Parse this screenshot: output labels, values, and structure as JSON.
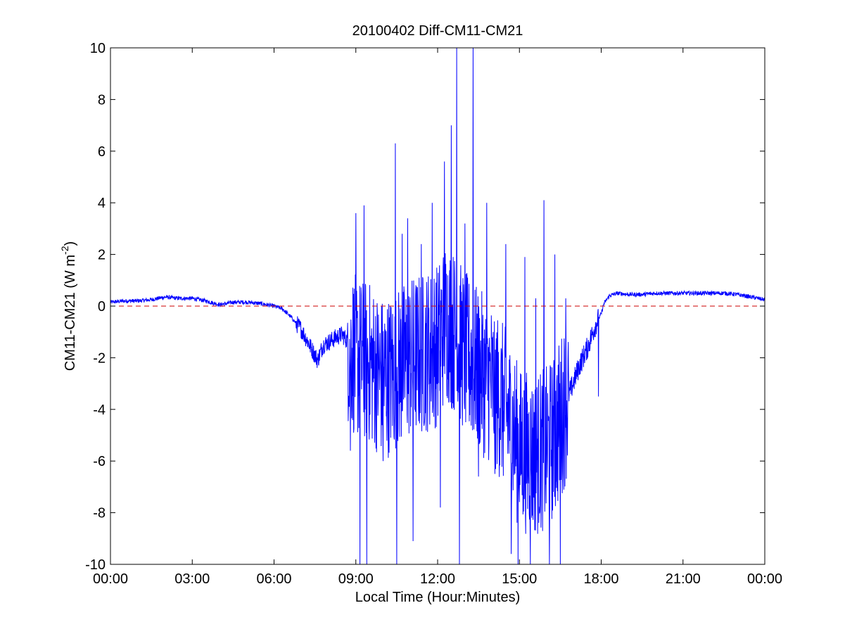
{
  "chart_data": {
    "type": "line",
    "title": "20100402 Diff-CM11-CM21",
    "xlabel": "Local Time (Hour:Minutes)",
    "ylabel": {
      "text": "CM11-CM21 (W m",
      "sup": "-2",
      "close": ")"
    },
    "xlim": [
      0,
      24
    ],
    "ylim": [
      -10,
      10
    ],
    "x_tick_values": [
      0,
      3,
      6,
      9,
      12,
      15,
      18,
      21,
      24
    ],
    "x_tick_labels": [
      "00:00",
      "03:00",
      "06:00",
      "09:00",
      "12:00",
      "15:00",
      "18:00",
      "21:00",
      "00:00"
    ],
    "y_ticks": [
      -10,
      -8,
      -6,
      -4,
      -2,
      0,
      2,
      4,
      6,
      8,
      10
    ],
    "y_tick_labels": [
      "-10",
      "-8",
      "-6",
      "-4",
      "-2",
      "0",
      "2",
      "4",
      "6",
      "8",
      "10"
    ],
    "grid": false,
    "series": [
      {
        "color": "#0000ff",
        "style": "solid",
        "x_unit": "hours",
        "points": [
          [
            0.0,
            0.15
          ],
          [
            0.5,
            0.2
          ],
          [
            1.0,
            0.2
          ],
          [
            1.5,
            0.25
          ],
          [
            2.0,
            0.35
          ],
          [
            2.5,
            0.3
          ],
          [
            3.0,
            0.3
          ],
          [
            3.5,
            0.2
          ],
          [
            4.0,
            0.05
          ],
          [
            4.5,
            0.15
          ],
          [
            5.0,
            0.15
          ],
          [
            5.5,
            0.1
          ],
          [
            6.0,
            0.0
          ],
          [
            6.3,
            -0.1
          ],
          [
            6.6,
            -0.4
          ],
          [
            7.0,
            -0.9
          ],
          [
            7.4,
            -1.7
          ],
          [
            7.6,
            -2.1
          ],
          [
            7.8,
            -1.5
          ],
          [
            8.0,
            -1.4
          ],
          [
            8.3,
            -1.2
          ],
          [
            8.5,
            -1.1
          ],
          [
            8.8,
            -1.5
          ],
          [
            9.0,
            -2.0
          ],
          [
            9.5,
            -2.2
          ],
          [
            10.0,
            -2.8
          ],
          [
            10.5,
            -2.5
          ],
          [
            11.0,
            -2.0
          ],
          [
            11.5,
            -1.8
          ],
          [
            12.0,
            -1.5
          ],
          [
            12.3,
            -0.5
          ],
          [
            12.6,
            -1.0
          ],
          [
            13.0,
            -1.8
          ],
          [
            13.5,
            -2.5
          ],
          [
            14.0,
            -3.0
          ],
          [
            14.5,
            -4.0
          ],
          [
            15.0,
            -5.5
          ],
          [
            15.5,
            -5.8
          ],
          [
            16.0,
            -5.5
          ],
          [
            16.3,
            -5.0
          ],
          [
            16.6,
            -4.0
          ],
          [
            16.9,
            -3.2
          ],
          [
            17.2,
            -2.3
          ],
          [
            17.5,
            -1.6
          ],
          [
            17.8,
            -0.7
          ],
          [
            18.0,
            -0.3
          ],
          [
            18.1,
            0.1
          ],
          [
            18.3,
            0.4
          ],
          [
            18.6,
            0.5
          ],
          [
            19.0,
            0.45
          ],
          [
            19.5,
            0.45
          ],
          [
            20.0,
            0.5
          ],
          [
            20.5,
            0.5
          ],
          [
            21.0,
            0.5
          ],
          [
            21.5,
            0.5
          ],
          [
            22.0,
            0.5
          ],
          [
            22.5,
            0.5
          ],
          [
            23.0,
            0.45
          ],
          [
            23.5,
            0.35
          ],
          [
            24.0,
            0.25
          ]
        ],
        "spikes": [
          [
            8.8,
            -5.6
          ],
          [
            9.0,
            3.6
          ],
          [
            9.15,
            -10.0
          ],
          [
            9.3,
            3.9
          ],
          [
            9.4,
            -10.0
          ],
          [
            10.0,
            -6.0
          ],
          [
            10.45,
            6.3
          ],
          [
            10.5,
            -10.0
          ],
          [
            10.7,
            2.8
          ],
          [
            10.9,
            3.4
          ],
          [
            11.1,
            -9.1
          ],
          [
            11.4,
            2.4
          ],
          [
            11.8,
            4.0
          ],
          [
            12.1,
            -7.8
          ],
          [
            12.25,
            5.6
          ],
          [
            12.5,
            7.0
          ],
          [
            12.7,
            10.0
          ],
          [
            12.8,
            -10.0
          ],
          [
            13.0,
            3.2
          ],
          [
            13.3,
            10.0
          ],
          [
            13.5,
            -6.6
          ],
          [
            13.8,
            4.0
          ],
          [
            14.1,
            -6.5
          ],
          [
            14.5,
            2.4
          ],
          [
            14.7,
            -9.6
          ],
          [
            14.95,
            -10.0
          ],
          [
            15.2,
            1.9
          ],
          [
            15.4,
            -10.0
          ],
          [
            15.6,
            0.3
          ],
          [
            15.9,
            4.1
          ],
          [
            16.1,
            -10.0
          ],
          [
            16.3,
            2.0
          ],
          [
            16.5,
            -10.0
          ],
          [
            16.7,
            0.3
          ],
          [
            17.9,
            -3.5
          ]
        ]
      },
      {
        "color": "#cc0000",
        "style": "dashed",
        "x": [
          0,
          24
        ],
        "values": [
          0,
          0
        ]
      }
    ]
  }
}
